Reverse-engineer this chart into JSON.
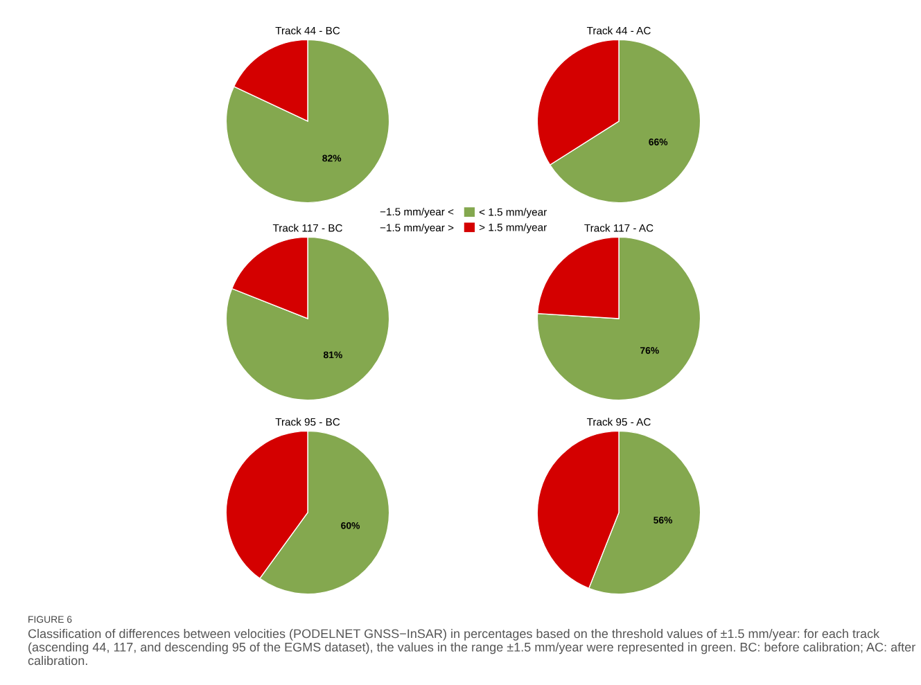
{
  "chart_data": [
    {
      "type": "pie",
      "title": "Track 44 - BC",
      "categories": [
        "< 1.5 mm/year",
        "> 1.5 mm/year"
      ],
      "values": [
        82,
        18
      ],
      "colors": [
        "#84a84f",
        "#d40000"
      ],
      "value_labels": [
        "82%",
        null
      ],
      "legend": "bottom right"
    },
    {
      "type": "pie",
      "title": "Track 44 - AC",
      "categories": [
        null,
        null
      ],
      "values": [
        66,
        34
      ],
      "colors": [
        "#84a84f",
        "#d40000"
      ],
      "value_labels": [
        "66%",
        null
      ]
    },
    {
      "type": "pie",
      "title": "Track 117 - BC",
      "categories": [
        null,
        null
      ],
      "values": [
        81,
        19
      ],
      "colors": [
        "#84a84f",
        "#d40000"
      ],
      "value_labels": [
        "81%",
        null
      ]
    },
    {
      "type": "pie",
      "title": "Track 117 - AC",
      "categories": [
        null,
        null
      ],
      "values": [
        76,
        24
      ],
      "colors": [
        "#84a84f",
        "#d40000"
      ],
      "value_labels": [
        "76%",
        null
      ]
    },
    {
      "type": "pie",
      "title": "Track 95 - BC",
      "categories": [
        null,
        null
      ],
      "values": [
        60,
        40
      ],
      "colors": [
        "#84a84f",
        "#d40000"
      ],
      "value_labels": [
        "60%",
        null
      ]
    },
    {
      "type": "pie",
      "title": "Track 95 - AC",
      "categories": [
        null,
        null
      ],
      "values": [
        56,
        44
      ],
      "colors": [
        "#84a84f",
        "#d40000"
      ],
      "value_labels": [
        "56%",
        null
      ]
    },
    {
      "type": "other",
      "annotations": [
        "−1.5 mm/year <",
        "−1.5 mm/year >",
        "FIGURE 6",
        "Classification of differences between velocities (PODELNET GNSS−InSAR) in percentages based on the threshold values of ±1.5 mm/year: for each track (ascending 44, 117, and descending 95 of the EGMS dataset), the values in the range ±1.5 mm/year were represented in green. BC: before calibration; AC: after calibration."
      ]
    }
  ]
}
